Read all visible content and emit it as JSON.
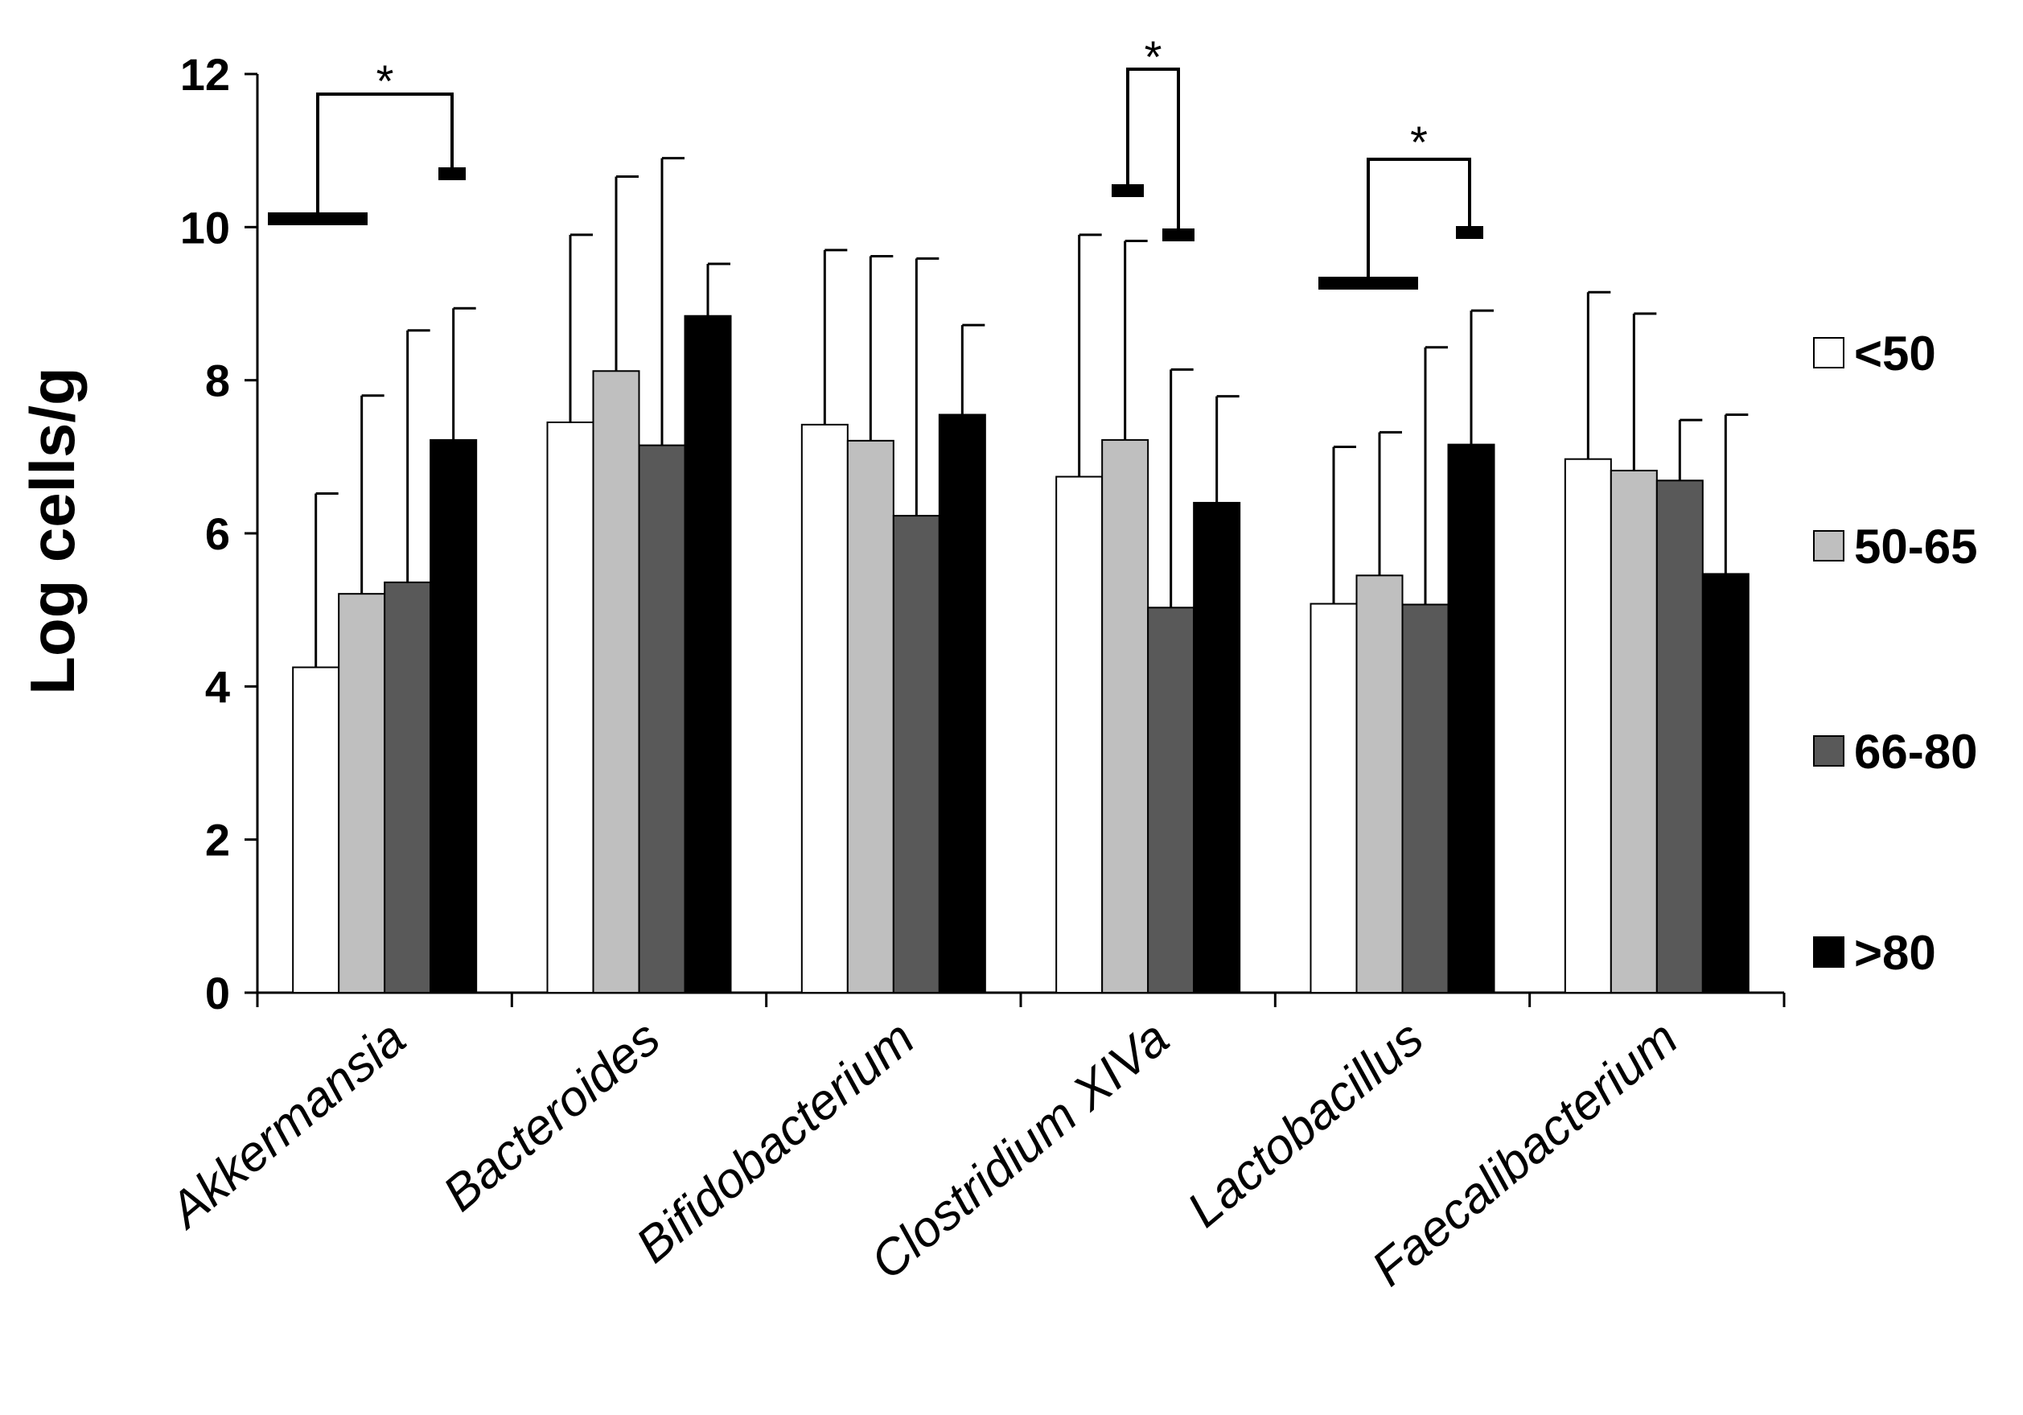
{
  "chart_data": {
    "type": "bar",
    "title": "",
    "xlabel": "",
    "ylabel": "Log cells/g",
    "ylim": [
      0,
      12
    ],
    "yticks": [
      "0",
      "2",
      "4",
      "6",
      "8",
      "10",
      "12"
    ],
    "categories": [
      "Akkermansia",
      "Bacteroides",
      "Bifidobacterium",
      "Clostridium XIVa",
      "Lactobacillus",
      "Faecalibacterium"
    ],
    "series": [
      {
        "name": "<50",
        "color": "#ffffff",
        "values": [
          4.25,
          7.45,
          7.42,
          6.74,
          5.08,
          6.97
        ],
        "errors": [
          2.27,
          2.45,
          2.28,
          3.16,
          2.05,
          2.18
        ]
      },
      {
        "name": "50-65",
        "color": "#bfbfbf",
        "values": [
          5.21,
          8.12,
          7.21,
          7.22,
          5.45,
          6.82
        ],
        "errors": [
          2.59,
          2.54,
          2.41,
          2.6,
          1.87,
          2.05
        ]
      },
      {
        "name": "66-80",
        "color": "#595959",
        "values": [
          5.36,
          7.15,
          6.23,
          5.03,
          5.07,
          6.69
        ],
        "errors": [
          3.29,
          3.75,
          3.36,
          3.11,
          3.36,
          0.79
        ]
      },
      {
        "name": ">80",
        "color": "#000000",
        "values": [
          7.22,
          8.84,
          7.55,
          6.4,
          7.16,
          5.47
        ],
        "errors": [
          1.72,
          0.68,
          1.17,
          1.39,
          1.75,
          2.08
        ]
      }
    ],
    "legend_position": "right",
    "annotations": [
      {
        "category": "Akkermansia",
        "series_from": "<50",
        "series_to": ">80",
        "label": "*"
      },
      {
        "category": "Clostridium XIVa",
        "series_from": "50-65",
        "series_to": "66-80",
        "label": "*"
      },
      {
        "category": "Lactobacillus",
        "series_from": "<50",
        "series_to": ">80",
        "label": "*"
      }
    ]
  }
}
